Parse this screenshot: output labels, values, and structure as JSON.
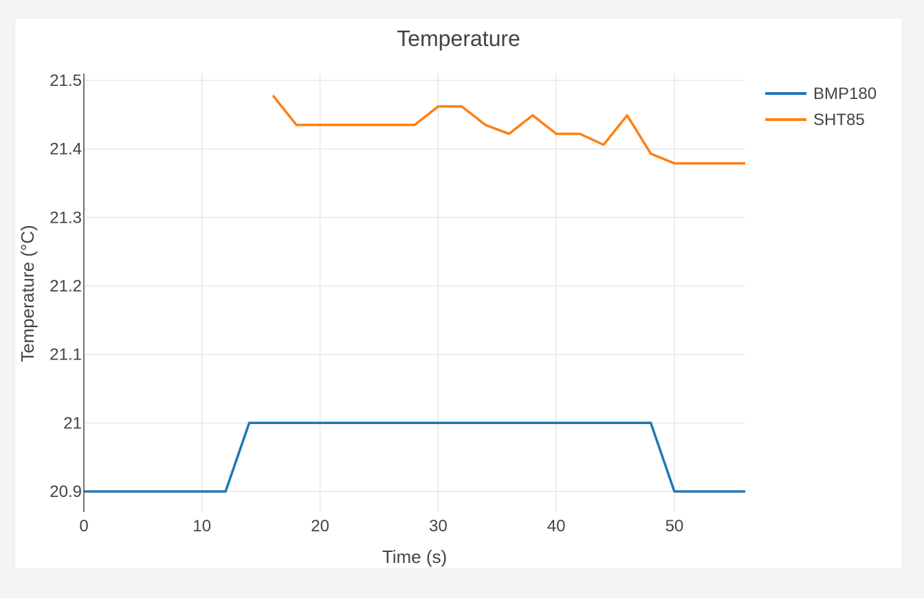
{
  "chart_data": {
    "type": "line",
    "title": "Temperature",
    "xlabel": "Time (s)",
    "ylabel": "Temperature (°C)",
    "xlim": [
      0,
      56
    ],
    "ylim": [
      20.9,
      21.5
    ],
    "x_ticks": [
      0,
      10,
      20,
      30,
      40,
      50
    ],
    "x_tick_labels": [
      "0",
      "10",
      "20",
      "30",
      "40",
      "50"
    ],
    "y_ticks": [
      20.9,
      21.0,
      21.1,
      21.2,
      21.3,
      21.4,
      21.5
    ],
    "y_tick_labels": [
      "20.9",
      "21",
      "21.1",
      "21.2",
      "21.3",
      "21.4",
      "21.5"
    ],
    "grid": true,
    "legend_position": "top-right",
    "series": [
      {
        "name": "BMP180",
        "color": "#1f77b4",
        "x": [
          0,
          2,
          4,
          6,
          8,
          10,
          12,
          14,
          16,
          18,
          20,
          22,
          24,
          26,
          28,
          30,
          32,
          34,
          36,
          38,
          40,
          42,
          44,
          46,
          48,
          50,
          52,
          54,
          56
        ],
        "y": [
          20.9,
          20.9,
          20.9,
          20.9,
          20.9,
          20.9,
          20.9,
          21.0,
          21.0,
          21.0,
          21.0,
          21.0,
          21.0,
          21.0,
          21.0,
          21.0,
          21.0,
          21.0,
          21.0,
          21.0,
          21.0,
          21.0,
          21.0,
          21.0,
          21.0,
          20.9,
          20.9,
          20.9,
          20.9
        ]
      },
      {
        "name": "SHT85",
        "color": "#ff7f0e",
        "x": [
          16,
          18,
          20,
          22,
          24,
          26,
          28,
          30,
          32,
          34,
          36,
          38,
          40,
          42,
          44,
          46,
          48,
          50,
          52,
          54,
          56
        ],
        "y": [
          21.478,
          21.435,
          21.435,
          21.435,
          21.435,
          21.435,
          21.435,
          21.462,
          21.462,
          21.435,
          21.422,
          21.449,
          21.422,
          21.422,
          21.406,
          21.449,
          21.393,
          21.379,
          21.379,
          21.379,
          21.379
        ]
      }
    ]
  }
}
